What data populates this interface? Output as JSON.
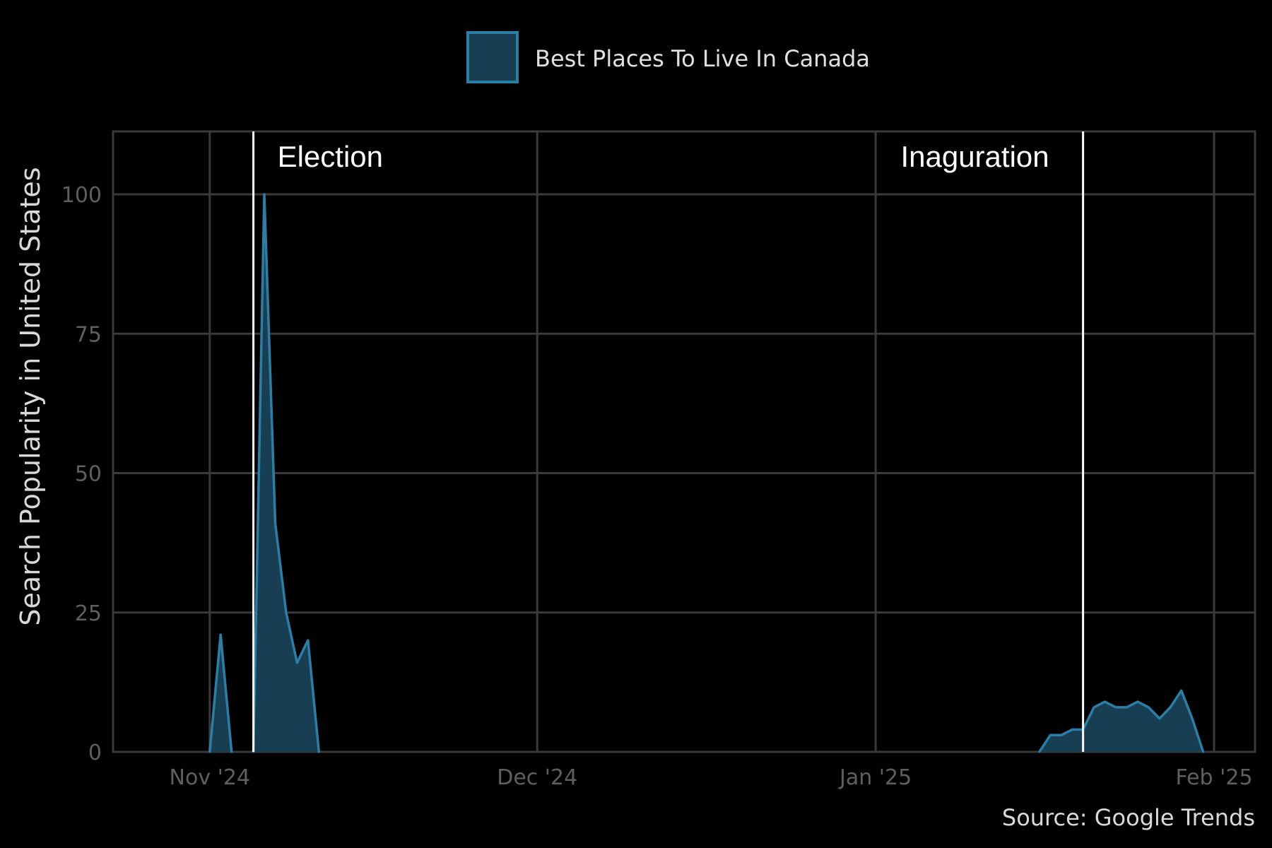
{
  "chart_data": {
    "type": "area",
    "title": "",
    "xlabel": "",
    "ylabel": "Search Popularity in United States",
    "caption": "Source: Google Trends",
    "x_range": [
      "2024-10-28",
      "2025-02-01"
    ],
    "ylim": [
      0,
      110
    ],
    "y_ticks": [
      0,
      25,
      50,
      75,
      100
    ],
    "x_ticks": [
      {
        "date": "2024-11-01",
        "label": "Nov '24"
      },
      {
        "date": "2024-12-01",
        "label": "Dec '24"
      },
      {
        "date": "2025-01-01",
        "label": "Jan '25"
      },
      {
        "date": "2025-02-01",
        "label": "Feb '25"
      }
    ],
    "grid": true,
    "legend_position": "top",
    "colors": {
      "fill": "#173e52",
      "line": "#2b7ea6",
      "grid": "#3a3a3a",
      "event_line": "#ffffff"
    },
    "series": [
      {
        "name": "Best Places To Live In Canada",
        "segments": [
          [
            {
              "date": "2024-11-01",
              "value": 0
            },
            {
              "date": "2024-11-02",
              "value": 21
            },
            {
              "date": "2024-11-03",
              "value": 0
            }
          ],
          [
            {
              "date": "2024-11-05",
              "value": 0
            },
            {
              "date": "2024-11-06",
              "value": 100
            },
            {
              "date": "2024-11-07",
              "value": 41
            },
            {
              "date": "2024-11-08",
              "value": 25
            },
            {
              "date": "2024-11-09",
              "value": 16
            },
            {
              "date": "2024-11-10",
              "value": 20
            },
            {
              "date": "2024-11-11",
              "value": 0
            }
          ],
          [
            {
              "date": "2025-01-16",
              "value": 0
            },
            {
              "date": "2025-01-17",
              "value": 3
            },
            {
              "date": "2025-01-18",
              "value": 3
            },
            {
              "date": "2025-01-19",
              "value": 4
            },
            {
              "date": "2025-01-20",
              "value": 4
            },
            {
              "date": "2025-01-21",
              "value": 8
            },
            {
              "date": "2025-01-22",
              "value": 9
            },
            {
              "date": "2025-01-23",
              "value": 8
            },
            {
              "date": "2025-01-24",
              "value": 8
            },
            {
              "date": "2025-01-25",
              "value": 9
            },
            {
              "date": "2025-01-26",
              "value": 8
            },
            {
              "date": "2025-01-27",
              "value": 6
            },
            {
              "date": "2025-01-28",
              "value": 8
            },
            {
              "date": "2025-01-29",
              "value": 11
            },
            {
              "date": "2025-01-30",
              "value": 6
            },
            {
              "date": "2025-01-31",
              "value": 0
            }
          ]
        ]
      }
    ],
    "annotations": [
      {
        "date": "2024-11-05",
        "label": "Election",
        "text_side": "right"
      },
      {
        "date": "2025-01-20",
        "label": "Inaguration",
        "text_side": "left"
      }
    ]
  }
}
